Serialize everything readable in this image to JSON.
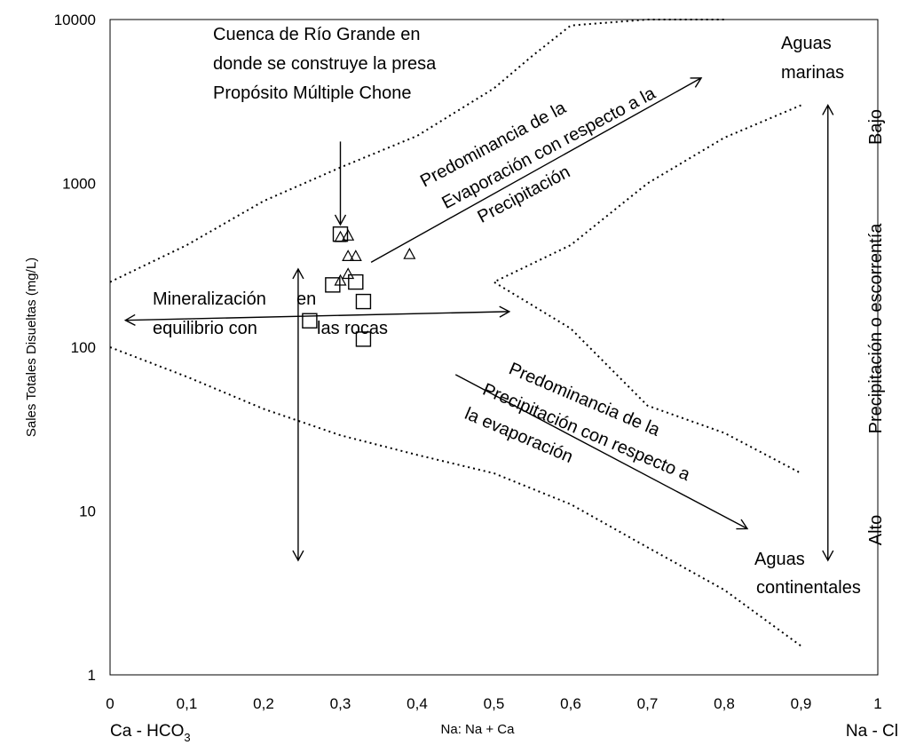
{
  "chart_data": {
    "type": "scatter",
    "title": "",
    "xlabel": "Na: Na + Ca",
    "ylabel": "Sales Totales Disueltas (mg/L)",
    "x_left_label": "Ca - HCO",
    "x_left_label_sub": "3",
    "x_right_label": "Na - Cl",
    "xlim": [
      0,
      1
    ],
    "ylim": [
      1,
      10000
    ],
    "yscale": "log",
    "x_ticks": [
      "0",
      "0,1",
      "0,2",
      "0,3",
      "0,4",
      "0,5",
      "0,6",
      "0,7",
      "0,8",
      "0,9",
      "1"
    ],
    "y_ticks": [
      "1",
      "10",
      "100",
      "1000",
      "10000"
    ],
    "grid": false,
    "series": [
      {
        "marker": "square",
        "points": [
          [
            0.3,
            490
          ],
          [
            0.29,
            240
          ],
          [
            0.32,
            250
          ],
          [
            0.33,
            190
          ],
          [
            0.26,
            145
          ],
          [
            0.33,
            112
          ]
        ]
      },
      {
        "marker": "triangle",
        "points": [
          [
            0.3,
            470
          ],
          [
            0.31,
            480
          ],
          [
            0.31,
            360
          ],
          [
            0.32,
            360
          ],
          [
            0.31,
            280
          ],
          [
            0.3,
            255
          ],
          [
            0.39,
            370
          ]
        ]
      }
    ],
    "boundaries": [
      [
        [
          0,
          250
        ],
        [
          0.1,
          420
        ],
        [
          0.2,
          780
        ],
        [
          0.3,
          1250
        ],
        [
          0.4,
          1950
        ],
        [
          0.5,
          3800
        ],
        [
          0.55,
          6000
        ],
        [
          0.6,
          9200
        ],
        [
          0.7,
          10000
        ],
        [
          0.8,
          10000
        ]
      ],
      [
        [
          0,
          100
        ],
        [
          0.1,
          66
        ],
        [
          0.2,
          42
        ],
        [
          0.3,
          29
        ],
        [
          0.4,
          22
        ],
        [
          0.5,
          17
        ],
        [
          0.6,
          11
        ],
        [
          0.7,
          6
        ],
        [
          0.8,
          3.3
        ],
        [
          0.9,
          1.5
        ]
      ],
      [
        [
          0.9,
          3000
        ],
        [
          0.8,
          1900
        ],
        [
          0.7,
          1000
        ],
        [
          0.6,
          420
        ],
        [
          0.5,
          250
        ],
        [
          0.6,
          130
        ],
        [
          0.7,
          44
        ],
        [
          0.8,
          30
        ],
        [
          0.9,
          17
        ]
      ]
    ],
    "annotations": {
      "basin": [
        "Cuenca de Río Grande en",
        "donde se construye la presa",
        "Propósito Múltiple Chone"
      ],
      "aguas_marinas": [
        "Aguas",
        "marinas"
      ],
      "aguas_continentales": [
        "Aguas",
        "continentales"
      ],
      "evaporation": [
        "Predominancia de la",
        "Evaporación con respecto a la",
        "Precipitación"
      ],
      "precipitation": [
        "Predominancia de la",
        "Precipitación con respecto a",
        "la  evaporación"
      ],
      "mineral_left": [
        "Mineralización",
        "equilibrio con"
      ],
      "mineral_right": [
        "en",
        "las rocas"
      ],
      "runoff": "Precipitación o escorrentía",
      "bajo": "Bajo",
      "alto": "Alto"
    }
  }
}
